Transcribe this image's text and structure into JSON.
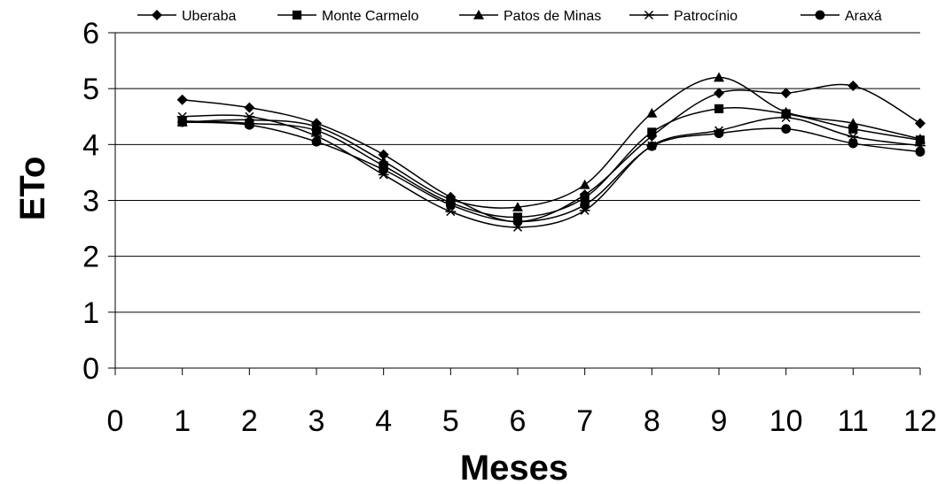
{
  "chart_data": {
    "type": "line",
    "title": "",
    "xlabel": "Meses",
    "ylabel": "ETo",
    "xlim": [
      0,
      12
    ],
    "ylim": [
      0,
      6
    ],
    "x_ticks": [
      0,
      1,
      2,
      3,
      4,
      5,
      6,
      7,
      8,
      9,
      10,
      11,
      12
    ],
    "y_ticks": [
      0,
      1,
      2,
      3,
      4,
      5,
      6
    ],
    "grid": "horizontal",
    "legend_position": "top",
    "smooth": true,
    "x": [
      1,
      2,
      3,
      4,
      5,
      6,
      7,
      8,
      9,
      10,
      11,
      12
    ],
    "series": [
      {
        "name": "Uberaba",
        "marker": "diamond",
        "color": "#000000",
        "values": [
          4.8,
          4.66,
          4.38,
          3.82,
          3.06,
          2.62,
          3.1,
          4.15,
          4.92,
          4.92,
          5.05,
          4.38
        ]
      },
      {
        "name": "Monte Carmelo",
        "marker": "square",
        "color": "#000000",
        "values": [
          4.42,
          4.38,
          4.25,
          3.62,
          2.96,
          2.7,
          3.05,
          4.22,
          4.64,
          4.55,
          4.28,
          4.08
        ]
      },
      {
        "name": "Patos de Minas",
        "marker": "triangle",
        "color": "#000000",
        "values": [
          4.4,
          4.44,
          4.32,
          3.7,
          3.02,
          2.88,
          3.28,
          4.56,
          5.2,
          4.58,
          4.38,
          4.1
        ]
      },
      {
        "name": "Patrocínio",
        "marker": "asterisk",
        "color": "#000000",
        "values": [
          4.5,
          4.5,
          4.15,
          3.46,
          2.8,
          2.52,
          2.82,
          3.98,
          4.25,
          4.48,
          4.14,
          3.98
        ]
      },
      {
        "name": "Araxá",
        "marker": "circle",
        "color": "#000000",
        "values": [
          4.4,
          4.35,
          4.05,
          3.55,
          2.92,
          2.62,
          2.92,
          3.97,
          4.2,
          4.28,
          4.02,
          3.87
        ]
      }
    ]
  }
}
